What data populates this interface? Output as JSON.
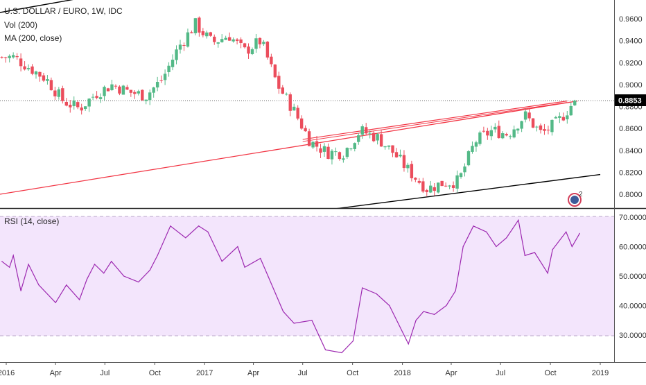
{
  "header": {
    "symbol_line": "U.S. DOLLAR / EURO, 1W, IDC",
    "volume_label": "Vol (200)",
    "ma_label": "MA (200, close)"
  },
  "price_panel": {
    "current_price": "0.8853",
    "y_ticks": [
      "0.9600",
      "0.9400",
      "0.9200",
      "0.9000",
      "0.8800",
      "0.8600",
      "0.8400",
      "0.8200",
      "0.8000"
    ],
    "logo_digit": "2",
    "colors": {
      "up": "#53b987",
      "down": "#eb4d5c",
      "ma": "#f23645",
      "trend": "#000000",
      "price_badge": "#000000"
    }
  },
  "rsi_panel": {
    "label": "RSI (14, close)",
    "y_ticks": [
      "70.0000",
      "60.0000",
      "50.0000",
      "40.0000",
      "30.0000"
    ],
    "colors": {
      "line": "#9c27b0",
      "band": "#f3e5fc"
    }
  },
  "time_axis": {
    "labels": [
      "2016",
      "Apr",
      "Jul",
      "Oct",
      "2017",
      "Apr",
      "Jul",
      "Oct",
      "2018",
      "Apr",
      "Jul",
      "Oct",
      "2019"
    ]
  },
  "chart_data": [
    {
      "type": "candlestick",
      "title": "U.S. DOLLAR / EURO, 1W, IDC",
      "ylim": [
        0.79,
        0.97
      ],
      "anchor_closes": [
        {
          "x": "2016-01",
          "y": 0.925
        },
        {
          "x": "2016-03",
          "y": 0.905
        },
        {
          "x": "2016-04",
          "y": 0.885
        },
        {
          "x": "2016-05",
          "y": 0.878
        },
        {
          "x": "2016-06",
          "y": 0.892
        },
        {
          "x": "2016-07",
          "y": 0.9
        },
        {
          "x": "2016-08",
          "y": 0.893
        },
        {
          "x": "2016-09",
          "y": 0.89
        },
        {
          "x": "2016-10",
          "y": 0.905
        },
        {
          "x": "2016-11",
          "y": 0.935
        },
        {
          "x": "2016-12",
          "y": 0.955
        },
        {
          "x": "2017-01",
          "y": 0.938
        },
        {
          "x": "2017-02",
          "y": 0.945
        },
        {
          "x": "2017-03",
          "y": 0.93
        },
        {
          "x": "2017-04",
          "y": 0.94
        },
        {
          "x": "2017-05",
          "y": 0.9
        },
        {
          "x": "2017-06",
          "y": 0.876
        },
        {
          "x": "2017-07",
          "y": 0.848
        },
        {
          "x": "2017-08",
          "y": 0.838
        },
        {
          "x": "2017-09",
          "y": 0.838
        },
        {
          "x": "2017-10",
          "y": 0.858
        },
        {
          "x": "2017-11",
          "y": 0.852
        },
        {
          "x": "2017-12",
          "y": 0.838
        },
        {
          "x": "2018-01",
          "y": 0.82
        },
        {
          "x": "2018-02",
          "y": 0.805
        },
        {
          "x": "2018-03",
          "y": 0.81
        },
        {
          "x": "2018-04",
          "y": 0.812
        },
        {
          "x": "2018-05",
          "y": 0.848
        },
        {
          "x": "2018-06",
          "y": 0.858
        },
        {
          "x": "2018-07",
          "y": 0.855
        },
        {
          "x": "2018-08",
          "y": 0.872
        },
        {
          "x": "2018-09",
          "y": 0.855
        },
        {
          "x": "2018-10",
          "y": 0.866
        },
        {
          "x": "2018-11",
          "y": 0.885
        }
      ],
      "last_close": 0.8853,
      "moving_average": {
        "name": "MA (200, close)",
        "start": 0.8,
        "end": 0.885
      },
      "trendlines": [
        {
          "from": {
            "x": "2015-12",
            "y": 0.964
          },
          "to": {
            "x": "2016-12",
            "y": 0.996
          }
        },
        {
          "from": {
            "x": "2017-05",
            "y": 0.779
          },
          "to": {
            "x": "2019-01",
            "y": 0.818
          }
        },
        {
          "from": {
            "x": "2017-07",
            "y": 0.85
          },
          "to": {
            "x": "2018-11",
            "y": 0.885
          }
        }
      ],
      "x_range": [
        "2015-12-24",
        "2019-01-20"
      ]
    },
    {
      "type": "line",
      "title": "RSI (14, close)",
      "ylim": [
        22,
        71
      ],
      "bands": [
        30,
        70
      ],
      "series": [
        {
          "name": "RSI (14, close)",
          "x": [
            "2015-12-24",
            "2016-01-07",
            "2016-01-14",
            "2016-01-28",
            "2016-02-11",
            "2016-03-01",
            "2016-04-01",
            "2016-04-21",
            "2016-05-15",
            "2016-05-29",
            "2016-06-12",
            "2016-06-29",
            "2016-07-13",
            "2016-08-05",
            "2016-09-01",
            "2016-09-22",
            "2016-10-06",
            "2016-10-30",
            "2016-11-27",
            "2016-12-21",
            "2017-01-07",
            "2017-02-02",
            "2017-03-03",
            "2017-03-16",
            "2017-04-14",
            "2017-04-28",
            "2017-05-26",
            "2017-06-15",
            "2017-07-18",
            "2017-08-12",
            "2017-09-11",
            "2017-10-02",
            "2017-10-19",
            "2017-11-14",
            "2017-12-08",
            "2018-01-12",
            "2018-01-26",
            "2018-02-09",
            "2018-03-01",
            "2018-03-23",
            "2018-04-09",
            "2018-04-23",
            "2018-05-12",
            "2018-06-05",
            "2018-06-23",
            "2018-07-12",
            "2018-08-03",
            "2018-08-15",
            "2018-09-02",
            "2018-09-26",
            "2018-10-05",
            "2018-10-30",
            "2018-11-10",
            "2018-11-24"
          ],
          "values": [
            55.0,
            53.0,
            57.0,
            45.0,
            54.0,
            47.0,
            41.0,
            47.0,
            42.0,
            49.0,
            54.0,
            51.0,
            55.0,
            50.0,
            48.0,
            52.0,
            57.0,
            67.0,
            63.0,
            67.0,
            65.0,
            55.0,
            60.0,
            53.0,
            56.0,
            50.0,
            38.0,
            34.0,
            35.0,
            25.0,
            24.0,
            28.0,
            46.0,
            44.0,
            40.0,
            27.0,
            35.0,
            38.0,
            37.0,
            40.0,
            45.0,
            60.0,
            67.0,
            65.0,
            60.0,
            63.0,
            69.0,
            57.0,
            58.0,
            51.0,
            59.0,
            65.0,
            60.0,
            64.5
          ]
        }
      ]
    }
  ]
}
